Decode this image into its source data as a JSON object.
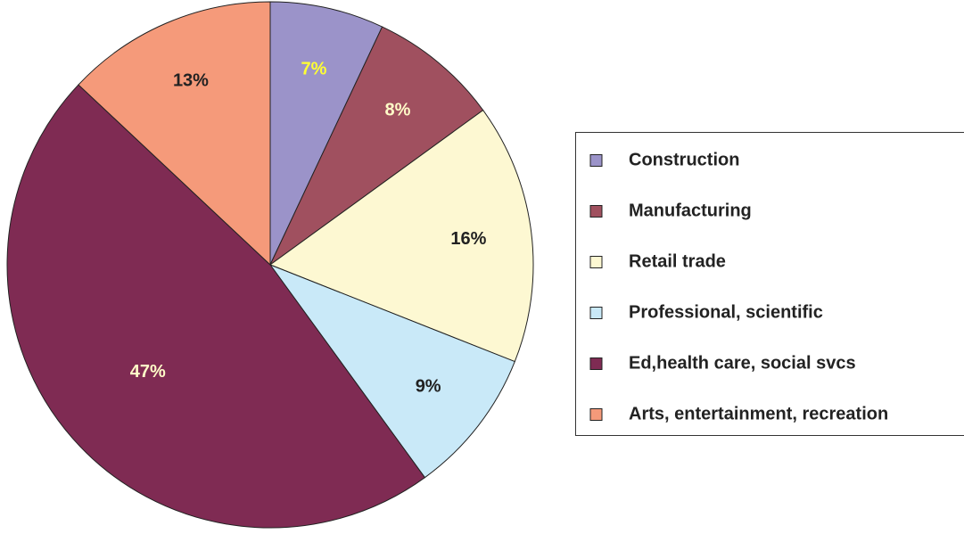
{
  "chart_data": {
    "type": "pie",
    "categories": [
      "Construction",
      "Manufacturing",
      "Retail trade",
      "Professional, scientific",
      "Ed,health care, social svcs",
      "Arts, entertainment, recreation"
    ],
    "values": [
      7,
      8,
      16,
      9,
      47,
      13
    ],
    "value_labels": [
      "7%",
      "8%",
      "16%",
      "9%",
      "47%",
      "13%"
    ],
    "colors": [
      "#9b93c9",
      "#a0505f",
      "#fdf8d2",
      "#c9e9f8",
      "#7f2b53",
      "#f59a7a"
    ],
    "label_colors": [
      "#ffff33",
      "#fffbc8",
      "#222222",
      "#222222",
      "#fffbc8",
      "#222222"
    ],
    "legend": "right"
  }
}
